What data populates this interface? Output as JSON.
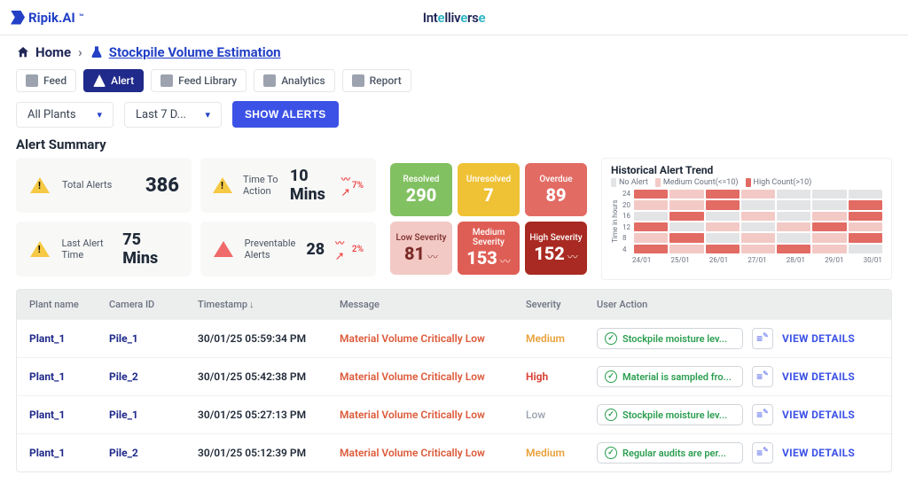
{
  "brand": {
    "name": "Ripik.AI",
    "center": "Intelliverse"
  },
  "breadcrumb": {
    "home": "Home",
    "current": "Stockpile Volume Estimation"
  },
  "nav_tabs": {
    "feed": "Feed",
    "alert": "Alert",
    "feed_library": "Feed Library",
    "analytics": "Analytics",
    "report": "Report",
    "active": "alert"
  },
  "filters": {
    "plant": "All Plants",
    "range": "Last 7 D...",
    "show_button": "SHOW ALERTS"
  },
  "summary": {
    "title": "Alert Summary",
    "total_alerts": {
      "label": "Total Alerts",
      "value": "386"
    },
    "time_to_action": {
      "label": "Time To Action",
      "value": "10 Mins",
      "trend": "7%"
    },
    "last_alert_time": {
      "label": "Last Alert Time",
      "value": "75 Mins"
    },
    "preventable": {
      "label": "Preventable Alerts",
      "value": "28",
      "trend": "2%"
    },
    "resolved": {
      "label": "Resolved",
      "value": "290",
      "color": "#82c162"
    },
    "unresolved": {
      "label": "Unresolved",
      "value": "7",
      "color": "#efc236"
    },
    "overdue": {
      "label": "Overdue",
      "value": "89",
      "color": "#e26b64"
    },
    "low_sev": {
      "label": "Low Severity",
      "value": "81",
      "color": "#f3c9c5",
      "text": "#7b2c28"
    },
    "med_sev": {
      "label": "Medium Severity",
      "value": "153",
      "color": "#de5e55"
    },
    "high_sev": {
      "label": "High Severity",
      "value": "152",
      "color": "#a82a22"
    }
  },
  "hist": {
    "title": "Historical Alert Trend",
    "legend": {
      "no": "No Alert",
      "med": "Medium Count(<=10)",
      "high": "High Count(>10)"
    },
    "colors": {
      "no": "#e3e4e5",
      "med": "#f3c9c5",
      "high": "#e26b64"
    },
    "ylabel": "Time in hours",
    "yticks": [
      "24",
      "20",
      "16",
      "12",
      "8",
      "4"
    ],
    "xticks": [
      "24/01",
      "25/01",
      "26/01",
      "27/01",
      "28/01",
      "29/01",
      "30/01"
    ],
    "cells": [
      [
        "high",
        "med",
        "high",
        "med",
        "no",
        "no",
        "no"
      ],
      [
        "med",
        "med",
        "high",
        "no",
        "no",
        "no",
        "high"
      ],
      [
        "no",
        "high",
        "no",
        "med",
        "no",
        "med",
        "high"
      ],
      [
        "high",
        "no",
        "med",
        "no",
        "med",
        "high",
        "med"
      ],
      [
        "med",
        "high",
        "no",
        "med",
        "no",
        "med",
        "high"
      ],
      [
        "high",
        "med",
        "high",
        "med",
        "high",
        "med",
        "no"
      ]
    ]
  },
  "table": {
    "columns": {
      "plant": "Plant name",
      "camera": "Camera ID",
      "ts": "Timestamp",
      "msg": "Message",
      "sev": "Severity",
      "action": "User Action"
    },
    "view_label": "VIEW DETAILS",
    "rows": [
      {
        "plant": "Plant_1",
        "camera": "Pile_1",
        "ts": "30/01/25 05:59:34 PM",
        "msg": "Material Volume Critically Low",
        "sev": "Medium",
        "sev_class": "sev-medium",
        "action": "Stockpile moisture lev..."
      },
      {
        "plant": "Plant_1",
        "camera": "Pile_2",
        "ts": "30/01/25 05:42:38 PM",
        "msg": "Material Volume Critically Low",
        "sev": "High",
        "sev_class": "sev-high",
        "action": "Material is sampled fro..."
      },
      {
        "plant": "Plant_1",
        "camera": "Pile_1",
        "ts": "30/01/25 05:27:13 PM",
        "msg": "Material Volume Critically Low",
        "sev": "Low",
        "sev_class": "sev-low",
        "action": "Stockpile moisture lev..."
      },
      {
        "plant": "Plant_1",
        "camera": "Pile_2",
        "ts": "30/01/25 05:12:39 PM",
        "msg": "Material Volume Critically Low",
        "sev": "Medium",
        "sev_class": "sev-medium",
        "action": "Regular audits are per..."
      }
    ]
  }
}
